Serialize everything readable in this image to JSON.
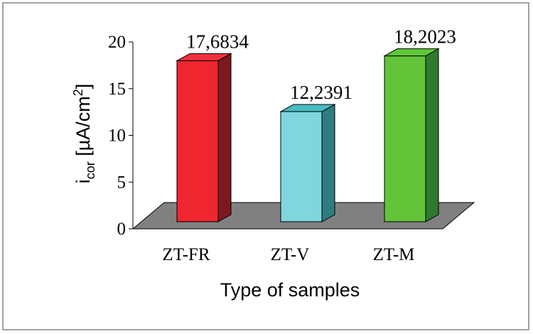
{
  "chart_data": {
    "type": "bar",
    "categories": [
      "ZT-FR",
      "ZT-V",
      "ZT-M"
    ],
    "values": [
      17.6834,
      12.2391,
      18.2023
    ],
    "value_labels": [
      "17,6834",
      "12,2391",
      "18,2023"
    ],
    "title": "",
    "xlabel": "Type of samples",
    "ylabel": {
      "prefix": "i",
      "subscript": "cor",
      "unit_open": " [µA/cm",
      "superscript": "2",
      "unit_close": "]"
    },
    "ylim": [
      0,
      20
    ],
    "yticks": [
      "0",
      "5",
      "10",
      "15",
      "20"
    ],
    "grid": false,
    "legend": "none",
    "colors": {
      "bars": [
        {
          "front": "#ef2530",
          "top": "#f0323d",
          "side": "#7d1820"
        },
        {
          "front": "#7fd6dc",
          "top": "#47bcc0",
          "side": "#2e7d80"
        },
        {
          "front": "#63c43a",
          "top": "#5ec837",
          "side": "#2e7a2e"
        }
      ],
      "floor": "#808080",
      "frame": "#666666"
    }
  }
}
